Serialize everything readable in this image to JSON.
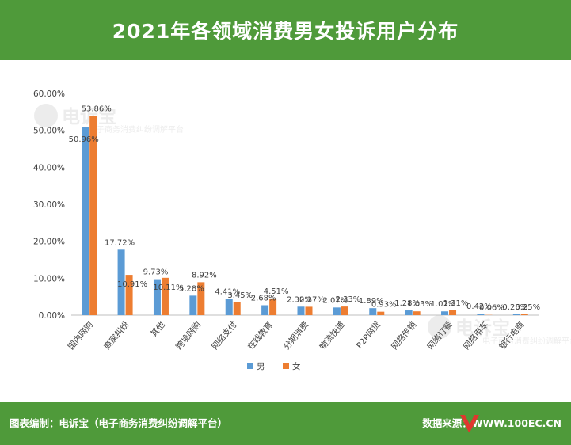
{
  "header": {
    "title": "2021年各领域消费男女投诉用户分布"
  },
  "footer": {
    "left": "图表编制：电诉宝（电子商务消费纠纷调解平台）",
    "right_label": "数据来源：",
    "right_url": "WWW.100EC.CN"
  },
  "watermark": {
    "text": "电诉宝",
    "subtitle": "电子商务消费纠纷调解平台"
  },
  "colors": {
    "brand_green": "#4f9a3a",
    "male": "#5b9bd5",
    "female": "#ed7d31"
  },
  "chart_data": {
    "type": "bar",
    "categories": [
      "国内网购",
      "商家纠纷",
      "其他",
      "跨境网购",
      "网络支付",
      "在线教育",
      "分期消费",
      "物流快递",
      "P2P网贷",
      "网络传销",
      "网络订餐",
      "网络用车",
      "银行电商"
    ],
    "series": [
      {
        "name": "男",
        "values": [
          50.96,
          17.72,
          9.73,
          5.28,
          4.41,
          2.68,
          2.3,
          2.07,
          1.89,
          1.28,
          1.02,
          0.42,
          0.26
        ],
        "labels": [
          "50.96%",
          "17.72%",
          "9.73%",
          "5.28%",
          "4.41%",
          "2.68%",
          "2.30%",
          "2.07%",
          "1.89%",
          "1.28%",
          "1.02%",
          "0.42%",
          "0.26%"
        ]
      },
      {
        "name": "女",
        "values": [
          53.86,
          10.91,
          10.11,
          8.92,
          3.45,
          4.51,
          2.27,
          2.33,
          0.93,
          1.03,
          1.31,
          0.06,
          0.25
        ],
        "labels": [
          "53.86%",
          "10.91%",
          "10.11%",
          "8.92%",
          "3.45%",
          "4.51%",
          "2.27%",
          "2.33%",
          "0.93%",
          "1.03%",
          "1.31%",
          "0.06%",
          "0.25%"
        ]
      }
    ],
    "yticks": [
      "0.00%",
      "10.00%",
      "20.00%",
      "30.00%",
      "40.00%",
      "50.00%",
      "60.00%"
    ],
    "ylim": [
      0,
      60
    ],
    "grid": false,
    "legend": "bottom"
  }
}
